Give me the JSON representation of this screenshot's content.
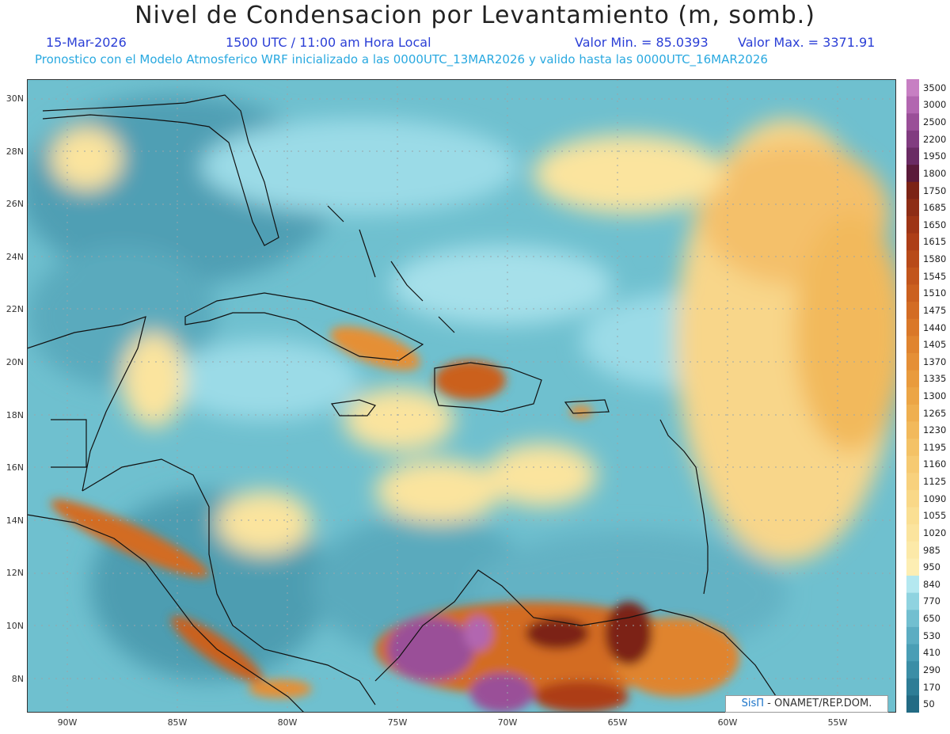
{
  "title": "Nivel de Condensacion por Levantamiento (m, somb.)",
  "date": "15-Mar-2026",
  "time": "1500 UTC / 11:00 am Hora Local",
  "valmin": "Valor Min. = 85.0393",
  "valmax": "Valor Max. = 3371.91",
  "subtitle": "Pronostico con el Modelo Atmosferico WRF inicializado a las 0000UTC_13MAR2026 y valido hasta las  0000UTC_16MAR2026",
  "lat_labels": [
    "30N",
    "28N",
    "26N",
    "24N",
    "22N",
    "20N",
    "18N",
    "16N",
    "14N",
    "12N",
    "10N",
    "8N"
  ],
  "lon_labels": [
    "90W",
    "85W",
    "80W",
    "75W",
    "70W",
    "65W",
    "60W",
    "55W"
  ],
  "legend": {
    "labels": [
      "3500",
      "3000",
      "2500",
      "2200",
      "1950",
      "1800",
      "1750",
      "1685",
      "1650",
      "1615",
      "1580",
      "1545",
      "1510",
      "1475",
      "1440",
      "1405",
      "1370",
      "1335",
      "1300",
      "1265",
      "1230",
      "1195",
      "1160",
      "1125",
      "1090",
      "1055",
      "1020",
      "985",
      "950",
      "840",
      "770",
      "650",
      "530",
      "410",
      "290",
      "170",
      "50"
    ],
    "colors": [
      "#c77fc3",
      "#b266b0",
      "#9a4f98",
      "#813c80",
      "#6a2b64",
      "#5a1a3a",
      "#7c2316",
      "#8e2d16",
      "#9e3516",
      "#ad3e17",
      "#b84a19",
      "#c2551c",
      "#cb601f",
      "#d36c24",
      "#da7829",
      "#e0842f",
      "#e58f36",
      "#e99b3d",
      "#eca545",
      "#efaf4f",
      "#f2b95b",
      "#f4c266",
      "#f6ca72",
      "#f8d17d",
      "#f9d888",
      "#fadf93",
      "#fbe49e",
      "#fce9a8",
      "#fdeeb3",
      "#b4e8f0",
      "#8fd3e0",
      "#72bfd0",
      "#5cadc2",
      "#4a9eb5",
      "#3b8ea6",
      "#2e7d96",
      "#236b84"
    ]
  },
  "credit_brand": "SisΠ",
  "credit_org": " - ONAMET/REP.DOM."
}
